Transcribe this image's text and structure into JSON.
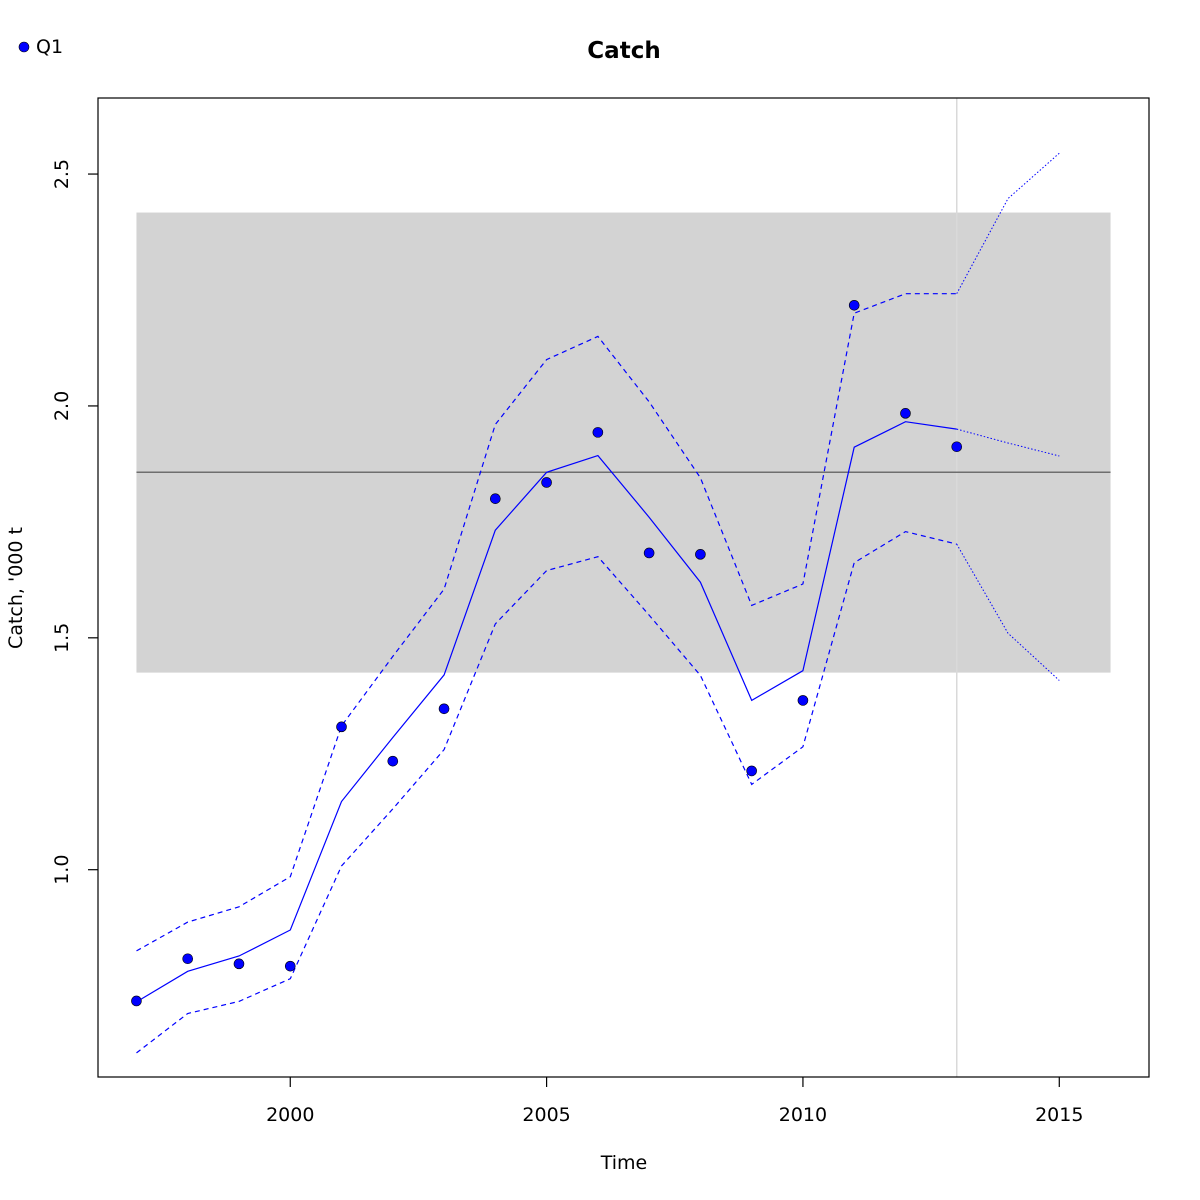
{
  "chart_data": {
    "type": "line",
    "title": "Catch",
    "xlabel": "Time",
    "ylabel": "Catch, '000 t",
    "xlim": [
      1996.25,
      2016.75
    ],
    "ylim": [
      0.553,
      2.664
    ],
    "xticks": [
      2000,
      2005,
      2010,
      2015
    ],
    "yticks": [
      1.0,
      1.5,
      2.0,
      2.5
    ],
    "ytick_labels": [
      "1.0",
      "1.5",
      "2.0",
      "2.5"
    ],
    "legend": {
      "position": "top-left",
      "entries": [
        {
          "label": "Q1",
          "color": "#0000ff",
          "marker": "filled-circle"
        }
      ]
    },
    "reference_band": {
      "x_range": [
        1997,
        2016
      ],
      "y_range": [
        1.425,
        2.417
      ],
      "color": "#d3d3d3"
    },
    "reference_line": {
      "y": 1.857,
      "x_range": [
        1997,
        2016
      ],
      "color": "#6e6e6e"
    },
    "projection_start_line": {
      "x": 2013,
      "color": "#d9d9d9"
    },
    "observed": {
      "x": [
        1997,
        1998,
        1999,
        2000,
        2001,
        2002,
        2003,
        2004,
        2005,
        2006,
        2007,
        2008,
        2009,
        2010,
        2011,
        2012,
        2013
      ],
      "y": [
        0.717,
        0.808,
        0.797,
        0.792,
        1.308,
        1.234,
        1.347,
        1.8,
        1.835,
        1.943,
        1.683,
        1.68,
        1.213,
        1.365,
        2.217,
        1.984,
        1.912
      ]
    },
    "fitted": {
      "x": [
        1997,
        1998,
        1999,
        2000,
        2001,
        2002,
        2003,
        2004,
        2005,
        2006,
        2007,
        2008,
        2009,
        2010,
        2011,
        2012,
        2013
      ],
      "mid": [
        0.715,
        0.781,
        0.814,
        0.87,
        1.147,
        1.285,
        1.42,
        1.732,
        1.857,
        1.893,
        1.76,
        1.62,
        1.365,
        1.429,
        1.911,
        1.966,
        1.95
      ],
      "upper": [
        0.825,
        0.887,
        0.92,
        0.985,
        1.31,
        1.46,
        1.605,
        1.96,
        2.1,
        2.15,
        2.009,
        1.845,
        1.57,
        1.616,
        2.2,
        2.242,
        2.242
      ],
      "lower": [
        0.605,
        0.69,
        0.716,
        0.765,
        1.008,
        1.131,
        1.259,
        1.53,
        1.645,
        1.675,
        1.549,
        1.419,
        1.184,
        1.265,
        1.662,
        1.729,
        1.702
      ]
    },
    "projection": {
      "x": [
        2013,
        2014,
        2015
      ],
      "mid": [
        1.95,
        1.92,
        1.892
      ],
      "upper": [
        2.242,
        2.447,
        2.545
      ],
      "lower": [
        1.702,
        1.51,
        1.408
      ]
    },
    "series_color": "#0000ff"
  }
}
